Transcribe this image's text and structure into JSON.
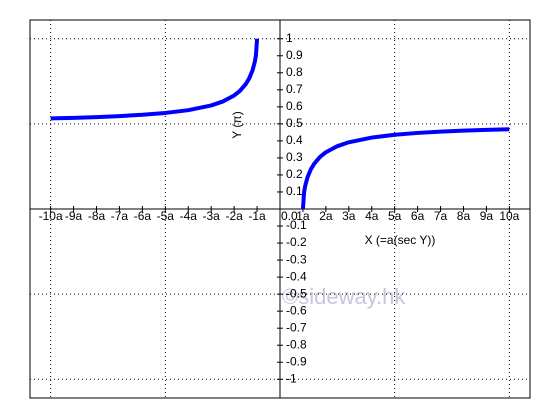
{
  "chart_data": {
    "type": "line",
    "xlabel": "X (=a(sec Y))",
    "ylabel": "Y (π)",
    "watermark": "©sideway.hk",
    "xlim": [
      -10.9,
      10.9
    ],
    "ylim": [
      -1.11,
      1.11
    ],
    "xticks": [
      {
        "value": -10,
        "label": "-10a"
      },
      {
        "value": -9,
        "label": "-9a"
      },
      {
        "value": -8,
        "label": "-8a"
      },
      {
        "value": -7,
        "label": "-7a"
      },
      {
        "value": -6,
        "label": "-6a"
      },
      {
        "value": -5,
        "label": "-5a"
      },
      {
        "value": -4,
        "label": "-4a"
      },
      {
        "value": -3,
        "label": "-3a"
      },
      {
        "value": -2,
        "label": "-2a"
      },
      {
        "value": -1,
        "label": "-1a"
      },
      {
        "value": 0,
        "label": "0.0"
      },
      {
        "value": 1,
        "label": "1a"
      },
      {
        "value": 2,
        "label": "2a"
      },
      {
        "value": 3,
        "label": "3a"
      },
      {
        "value": 4,
        "label": "4a"
      },
      {
        "value": 5,
        "label": "5a"
      },
      {
        "value": 6,
        "label": "6a"
      },
      {
        "value": 7,
        "label": "7a"
      },
      {
        "value": 8,
        "label": "8a"
      },
      {
        "value": 9,
        "label": "9a"
      },
      {
        "value": 10,
        "label": "10a"
      }
    ],
    "yticks": [
      -1,
      -0.9,
      -0.8,
      -0.7,
      -0.6,
      -0.5,
      -0.4,
      -0.3,
      -0.2,
      -0.1,
      0.1,
      0.2,
      0.3,
      0.4,
      0.5,
      0.6,
      0.7,
      0.8,
      0.9,
      1
    ],
    "xgrid": [
      -10,
      -5,
      5,
      10
    ],
    "ygrid": [
      -1,
      -0.5,
      0.5,
      1
    ],
    "grid": true,
    "series": [
      {
        "color": "#0000ff",
        "x": [
          -10,
          -9,
          -8,
          -7,
          -6,
          -5,
          -4,
          -3,
          -2.5,
          -2,
          -1.75,
          -1.5,
          -1.35,
          -1.2,
          -1.1,
          -1.05,
          -1
        ],
        "values": [
          0.5319,
          0.5354,
          0.5399,
          0.5456,
          0.5533,
          0.5641,
          0.5804,
          0.6082,
          0.631,
          0.6667,
          0.6936,
          0.7323,
          0.7653,
          0.8136,
          0.8632,
          0.9014,
          1
        ]
      },
      {
        "color": "#0000ff",
        "x": [
          1,
          1.05,
          1.1,
          1.2,
          1.35,
          1.5,
          1.75,
          2,
          2.5,
          3,
          4,
          5,
          6,
          7,
          8,
          9,
          10
        ],
        "values": [
          0,
          0.0986,
          0.1368,
          0.1864,
          0.2347,
          0.2677,
          0.3064,
          0.3333,
          0.369,
          0.3918,
          0.4196,
          0.4359,
          0.4467,
          0.4544,
          0.4601,
          0.4646,
          0.4681
        ]
      }
    ]
  }
}
